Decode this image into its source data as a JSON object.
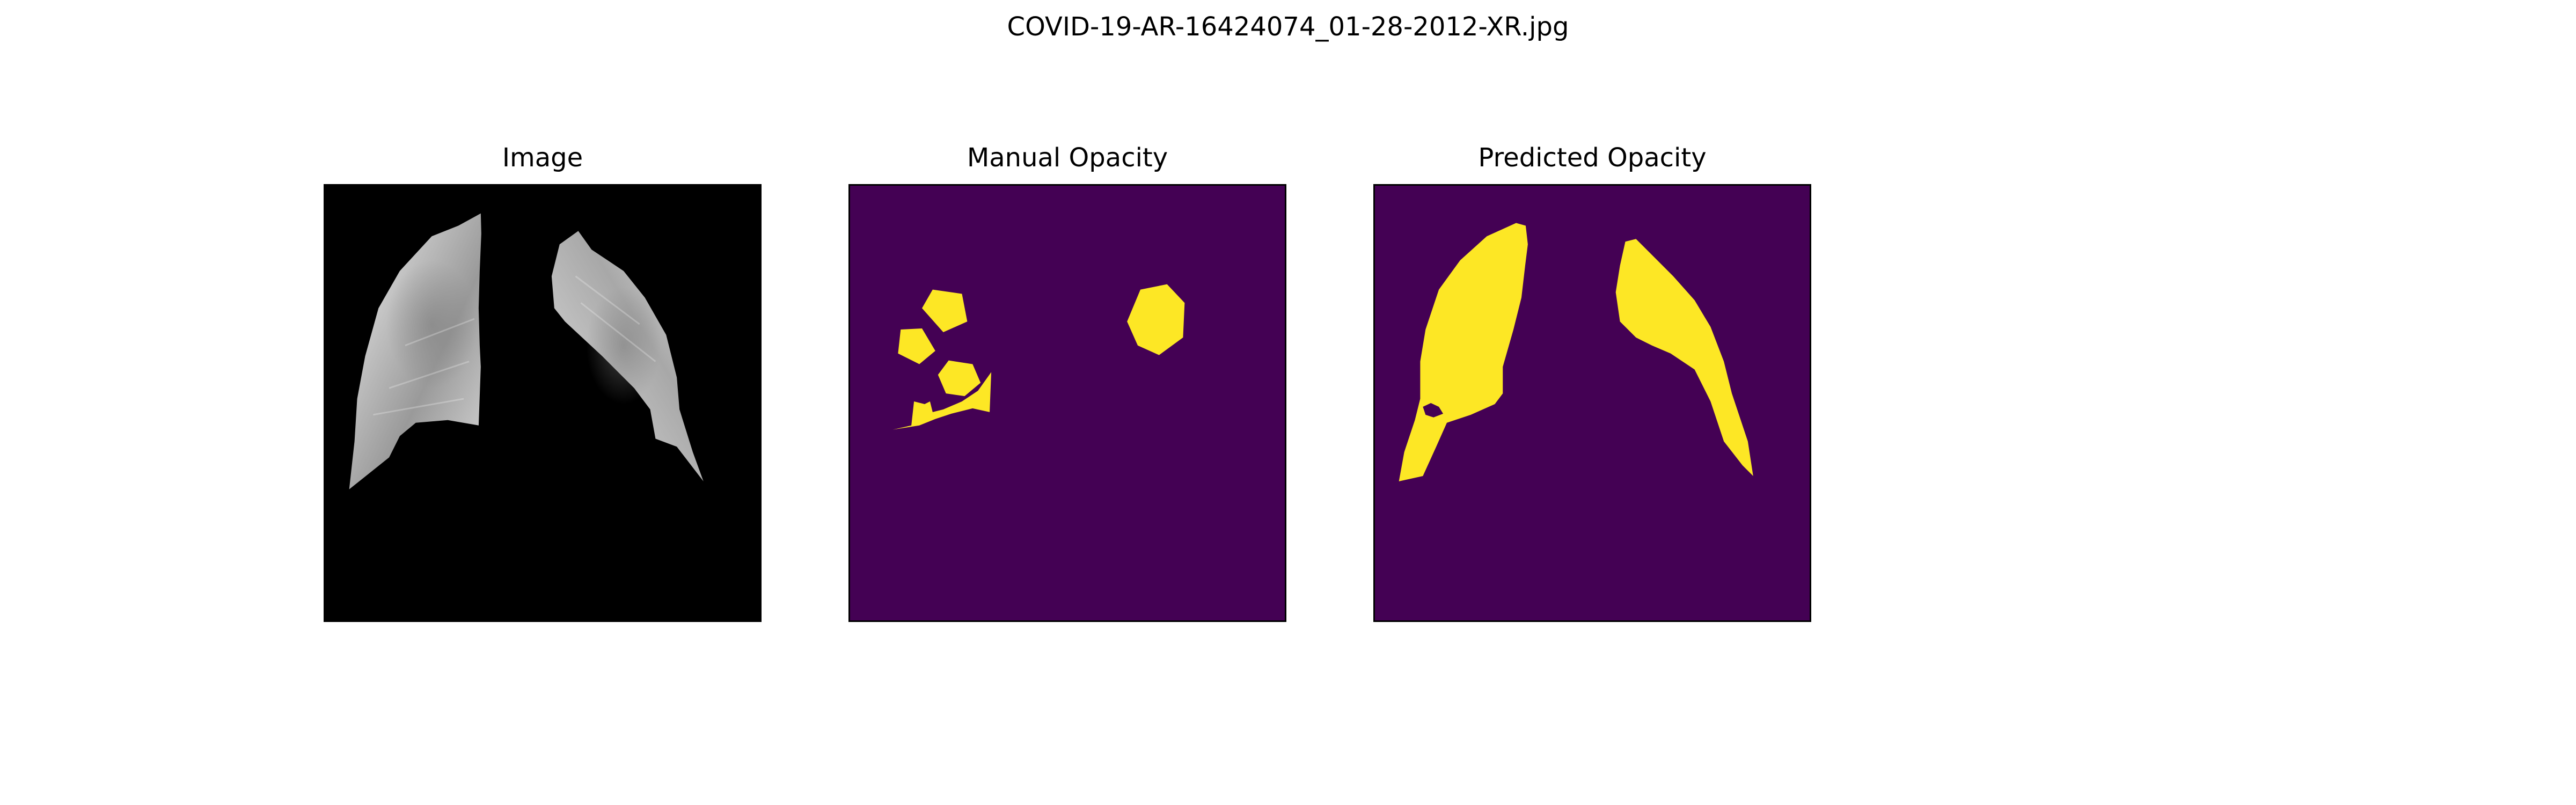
{
  "figure": {
    "title": "COVID-19-AR-16424074_01-28-2012-XR.jpg"
  },
  "panels": [
    {
      "title": "Image",
      "colormap": "gray",
      "background_color": "#000000"
    },
    {
      "title": "Manual Opacity",
      "colormap": "viridis",
      "background_color": "#440154",
      "mask_color": "#fde725"
    },
    {
      "title": "Predicted Opacity",
      "colormap": "viridis",
      "background_color": "#440154",
      "mask_color": "#fde725"
    }
  ]
}
